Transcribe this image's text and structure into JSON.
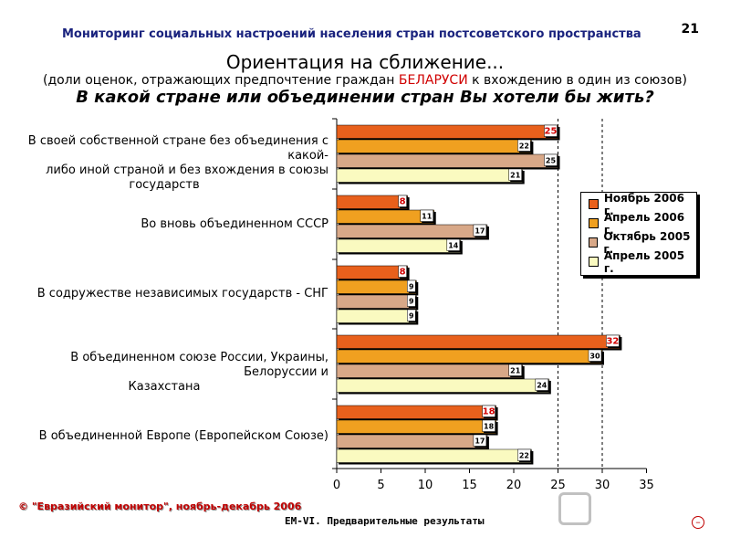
{
  "header": {
    "title": "Мониторинг социальных настроений населения стран постсоветского пространства",
    "page_number": "21"
  },
  "slide": {
    "title": "Ориентация на сближение...",
    "subtitle_before": "(доли оценок, отражающих предпочтение граждан ",
    "subtitle_highlight": "БЕЛАРУСИ",
    "subtitle_after": " к вхождению в один из союзов)",
    "question": "В какой стране или объединении стран Вы хотели бы жить?"
  },
  "footer": {
    "copyright": "© \"Евразийский монитор\", ноябрь-декабрь 2006",
    "note": "ЕМ-VI. Предварительные результаты"
  },
  "chart_data": {
    "type": "bar",
    "orientation": "horizontal",
    "categories": [
      [
        "В своей собственной стране без объединения с какой-",
        "либо иной страной и без вхождения в союзы",
        "государств"
      ],
      [
        "Во вновь объединенном СССР"
      ],
      [
        "В содружестве независимых государств - СНГ"
      ],
      [
        "В объединенном союзе России, Украины, Белоруссии и",
        "Казахстана"
      ],
      [
        "В объединенной Европе (Европейском Союзе)"
      ]
    ],
    "series": [
      {
        "name": "Ноябрь 2006 г.",
        "color": "#e8601c",
        "values": [
          25,
          8,
          8,
          32,
          18
        ]
      },
      {
        "name": "Апрель 2006 г.",
        "color": "#f0a020",
        "values": [
          22,
          11,
          9,
          30,
          18
        ]
      },
      {
        "name": "Октябрь 2005 г.",
        "color": "#d8a888",
        "values": [
          25,
          17,
          9,
          21,
          17
        ]
      },
      {
        "name": "Апрель 2005 г.",
        "color": "#fafac0",
        "values": [
          21,
          14,
          9,
          24,
          22
        ]
      }
    ],
    "xlim": [
      0,
      35
    ],
    "xticks": [
      "0",
      "5",
      "10",
      "15",
      "20",
      "25",
      "30",
      "35"
    ],
    "grid": "dashed vertical at 25, 30",
    "legend_position": "right"
  }
}
